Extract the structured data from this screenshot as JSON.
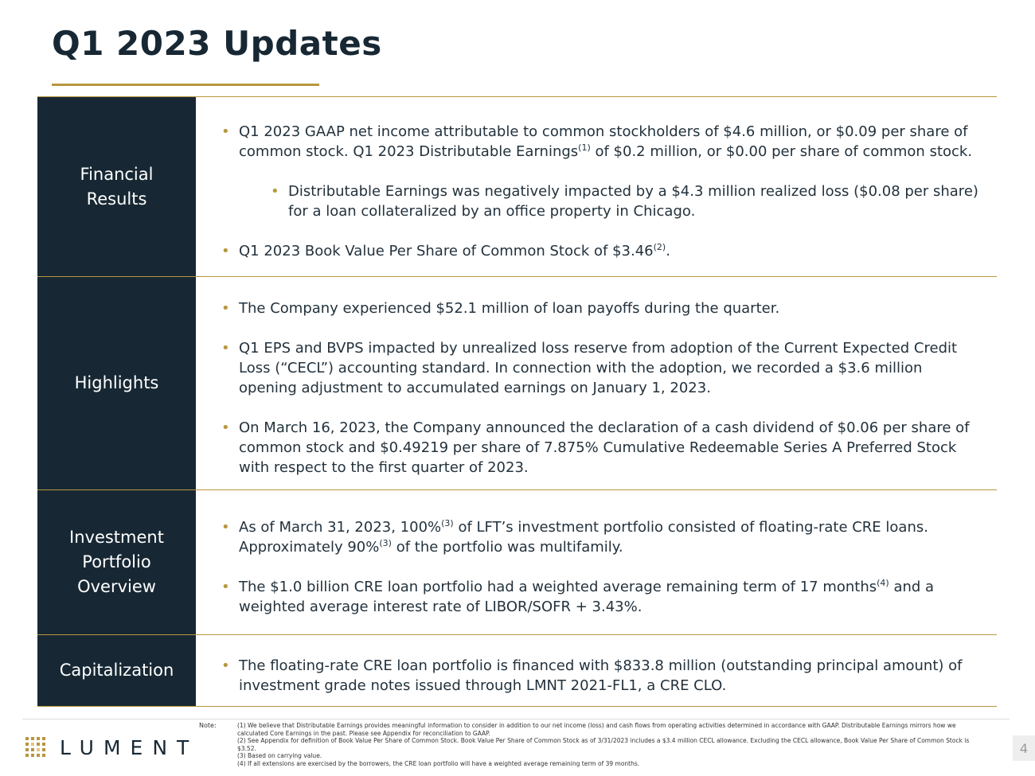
{
  "title": "Q1 2023 Updates",
  "sections": [
    {
      "label": "Financial Results",
      "bullets": [
        {
          "parts": [
            "Q1 2023 GAAP net income attributable to common stockholders of $4.6 million, or $0.09 per share of common stock. Q1 2023 Distributable Earnings",
            "(1)",
            " of $0.2 million, or $0.00 per share of common stock."
          ],
          "sub_bullets": [
            {
              "parts": [
                "Distributable Earnings was negatively impacted by a $4.3 million realized loss ($0.08 per share) for a loan collateralized by an office property in Chicago."
              ]
            }
          ]
        },
        {
          "parts": [
            "Q1 2023 Book Value Per Share of Common Stock of $3.46",
            "(2)",
            "."
          ]
        }
      ]
    },
    {
      "label": "Highlights",
      "bullets": [
        {
          "parts": [
            "The Company experienced $52.1 million of loan payoffs during the quarter."
          ]
        },
        {
          "parts": [
            "Q1 EPS and BVPS impacted by unrealized loss reserve from adoption of the Current Expected Credit Loss (“CECL”) accounting standard. In connection with the adoption, we recorded a $3.6 million opening adjustment to accumulated earnings on January 1, 2023."
          ]
        },
        {
          "parts": [
            "On March 16, 2023, the Company announced the declaration of a cash dividend of $0.06 per share of common stock and $0.49219 per share of 7.875% Cumulative Redeemable Series A Preferred Stock with respect to the first quarter of 2023."
          ]
        }
      ]
    },
    {
      "label": "Investment Portfolio Overview",
      "bullets": [
        {
          "parts": [
            "As of March 31, 2023, 100%",
            "(3)",
            " of LFT’s investment portfolio consisted of floating-rate CRE loans. Approximately 90%",
            "(3)",
            " of the portfolio was multifamily."
          ]
        },
        {
          "parts": [
            "The $1.0 billion CRE loan portfolio had a weighted average remaining term of 17 months",
            "(4)",
            " and a weighted average interest rate of LIBOR/SOFR + 3.43%."
          ]
        }
      ]
    },
    {
      "label": "Capitalization",
      "bullets": [
        {
          "parts": [
            "The floating-rate CRE loan portfolio is financed with $833.8 million (outstanding principal amount) of investment grade notes issued through LMNT 2021-FL1, a CRE CLO."
          ]
        }
      ]
    }
  ],
  "footer": {
    "logo": "LUMENT",
    "note_label": "Note:",
    "notes": [
      "(1) We believe that Distributable Earnings provides meaningful information to consider in addition to our net income (loss) and cash flows from operating activities determined in accordance with GAAP. Distributable Earnings mirrors how we calculated Core Earnings in the past. Please see Appendix for reconciliation to GAAP.",
      "(2) See Appendix for definition of Book Value Per Share of Common Stock. Book Value Per Share of Common Stock as of 3/31/2023 includes a $3.4 million CECL allowance. Excluding the CECL allowance, Book Value Per Share of Common Stock is $3.52.",
      "(3) Based on carrying value.",
      "(4) If all extensions are exercised by the borrowers, the CRE loan portfolio will have a weighted average remaining term of 39 months."
    ],
    "page_number": "4"
  }
}
